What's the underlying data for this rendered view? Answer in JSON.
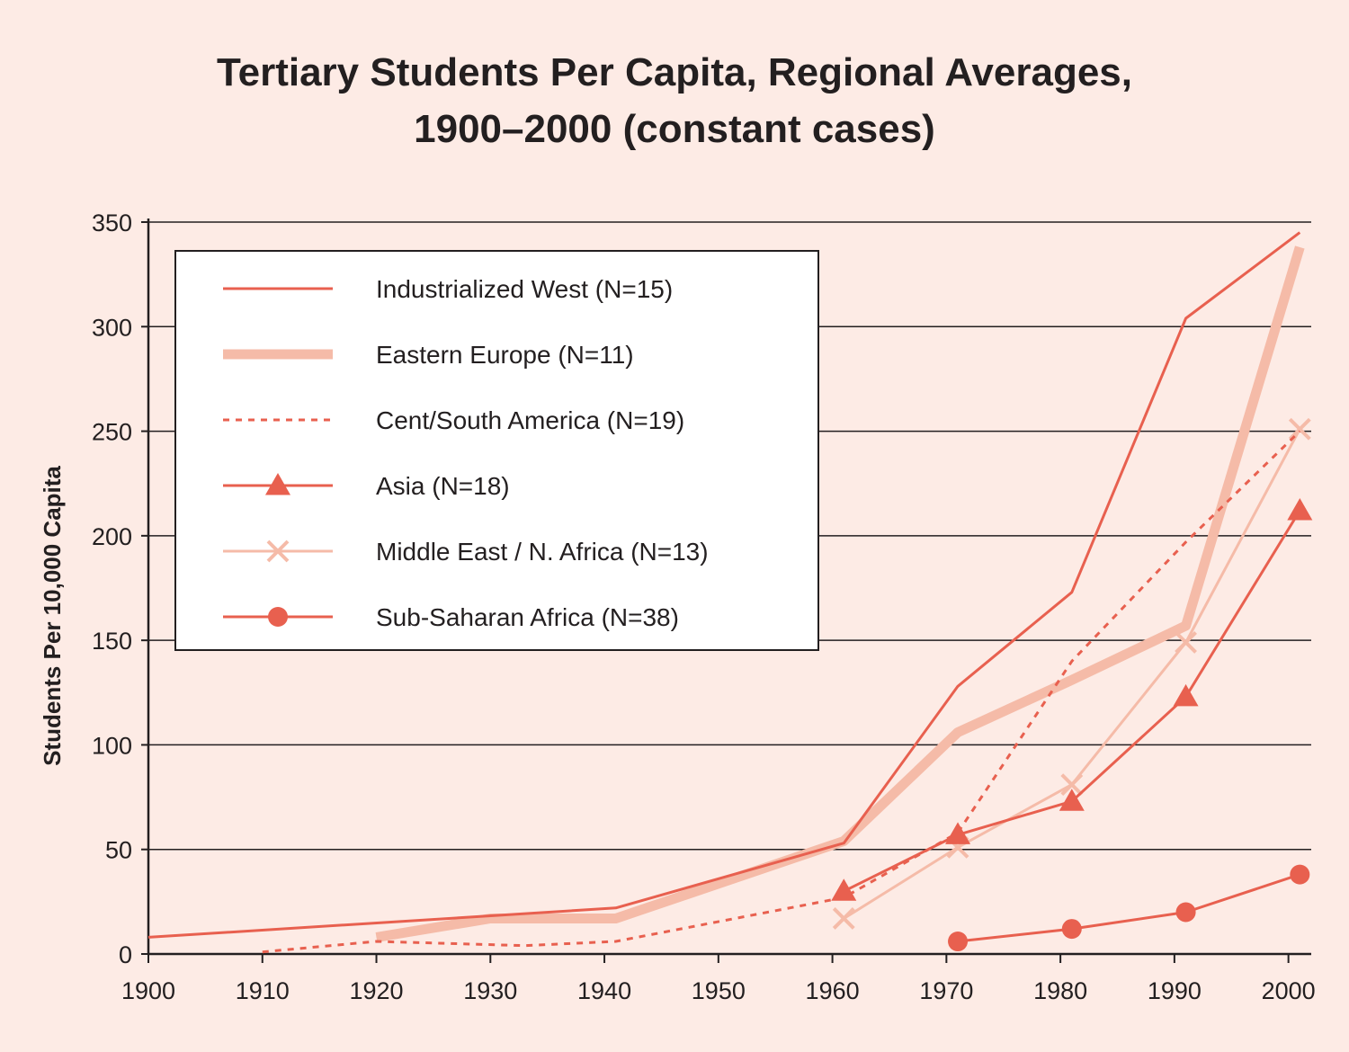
{
  "chart_data": {
    "type": "line",
    "title": "Tertiary Students Per Capita, Regional Averages,",
    "subtitle": "1900–2000 (constant cases)",
    "xlabel": "",
    "ylabel": "Students Per 10,000 Capita",
    "xlim": [
      1900,
      2002
    ],
    "ylim": [
      0,
      350
    ],
    "xticks": [
      1900,
      1910,
      1920,
      1930,
      1940,
      1950,
      1960,
      1970,
      1980,
      1990,
      2000
    ],
    "yticks": [
      0,
      50,
      100,
      150,
      200,
      250,
      300,
      350
    ],
    "grid": "horizontal",
    "legend_position": "top-left",
    "colors": {
      "background": "#fdebe5",
      "dark": "#e8604f",
      "light": "#f5bba8",
      "grid": "#231f20"
    },
    "series": [
      {
        "name": "Industrialized West (N=15)",
        "style": "thin-solid",
        "marker": "none",
        "x": [
          1900,
          1941,
          1961,
          1971,
          1981,
          1991,
          2001
        ],
        "y": [
          8,
          22,
          53,
          128,
          173,
          304,
          345
        ]
      },
      {
        "name": "Eastern Europe (N=11)",
        "style": "thick-solid",
        "marker": "none",
        "x": [
          1920,
          1930,
          1941,
          1961,
          1971,
          1981,
          1991,
          2001
        ],
        "y": [
          8,
          17,
          17,
          54,
          106,
          131,
          157,
          338
        ]
      },
      {
        "name": "Cent/South America (N=19)",
        "style": "dashed",
        "marker": "none",
        "x": [
          1910,
          1920,
          1933,
          1941,
          1961,
          1971,
          1981,
          1991,
          2001
        ],
        "y": [
          1,
          6,
          4,
          6,
          27,
          58,
          140,
          197,
          250
        ]
      },
      {
        "name": "Asia (N=18)",
        "style": "solid",
        "marker": "triangle",
        "x": [
          1961,
          1971,
          1981,
          1991,
          2001
        ],
        "y": [
          30,
          57,
          73,
          123,
          212
        ]
      },
      {
        "name": "Middle East / N. Africa (N=13)",
        "style": "solid-light",
        "marker": "x",
        "x": [
          1961,
          1971,
          1981,
          1991,
          2001
        ],
        "y": [
          17,
          51,
          81,
          149,
          251
        ]
      },
      {
        "name": "Sub-Saharan Africa (N=38)",
        "style": "solid",
        "marker": "circle",
        "x": [
          1971,
          1981,
          1991,
          2001
        ],
        "y": [
          6,
          12,
          20,
          38
        ]
      }
    ]
  }
}
